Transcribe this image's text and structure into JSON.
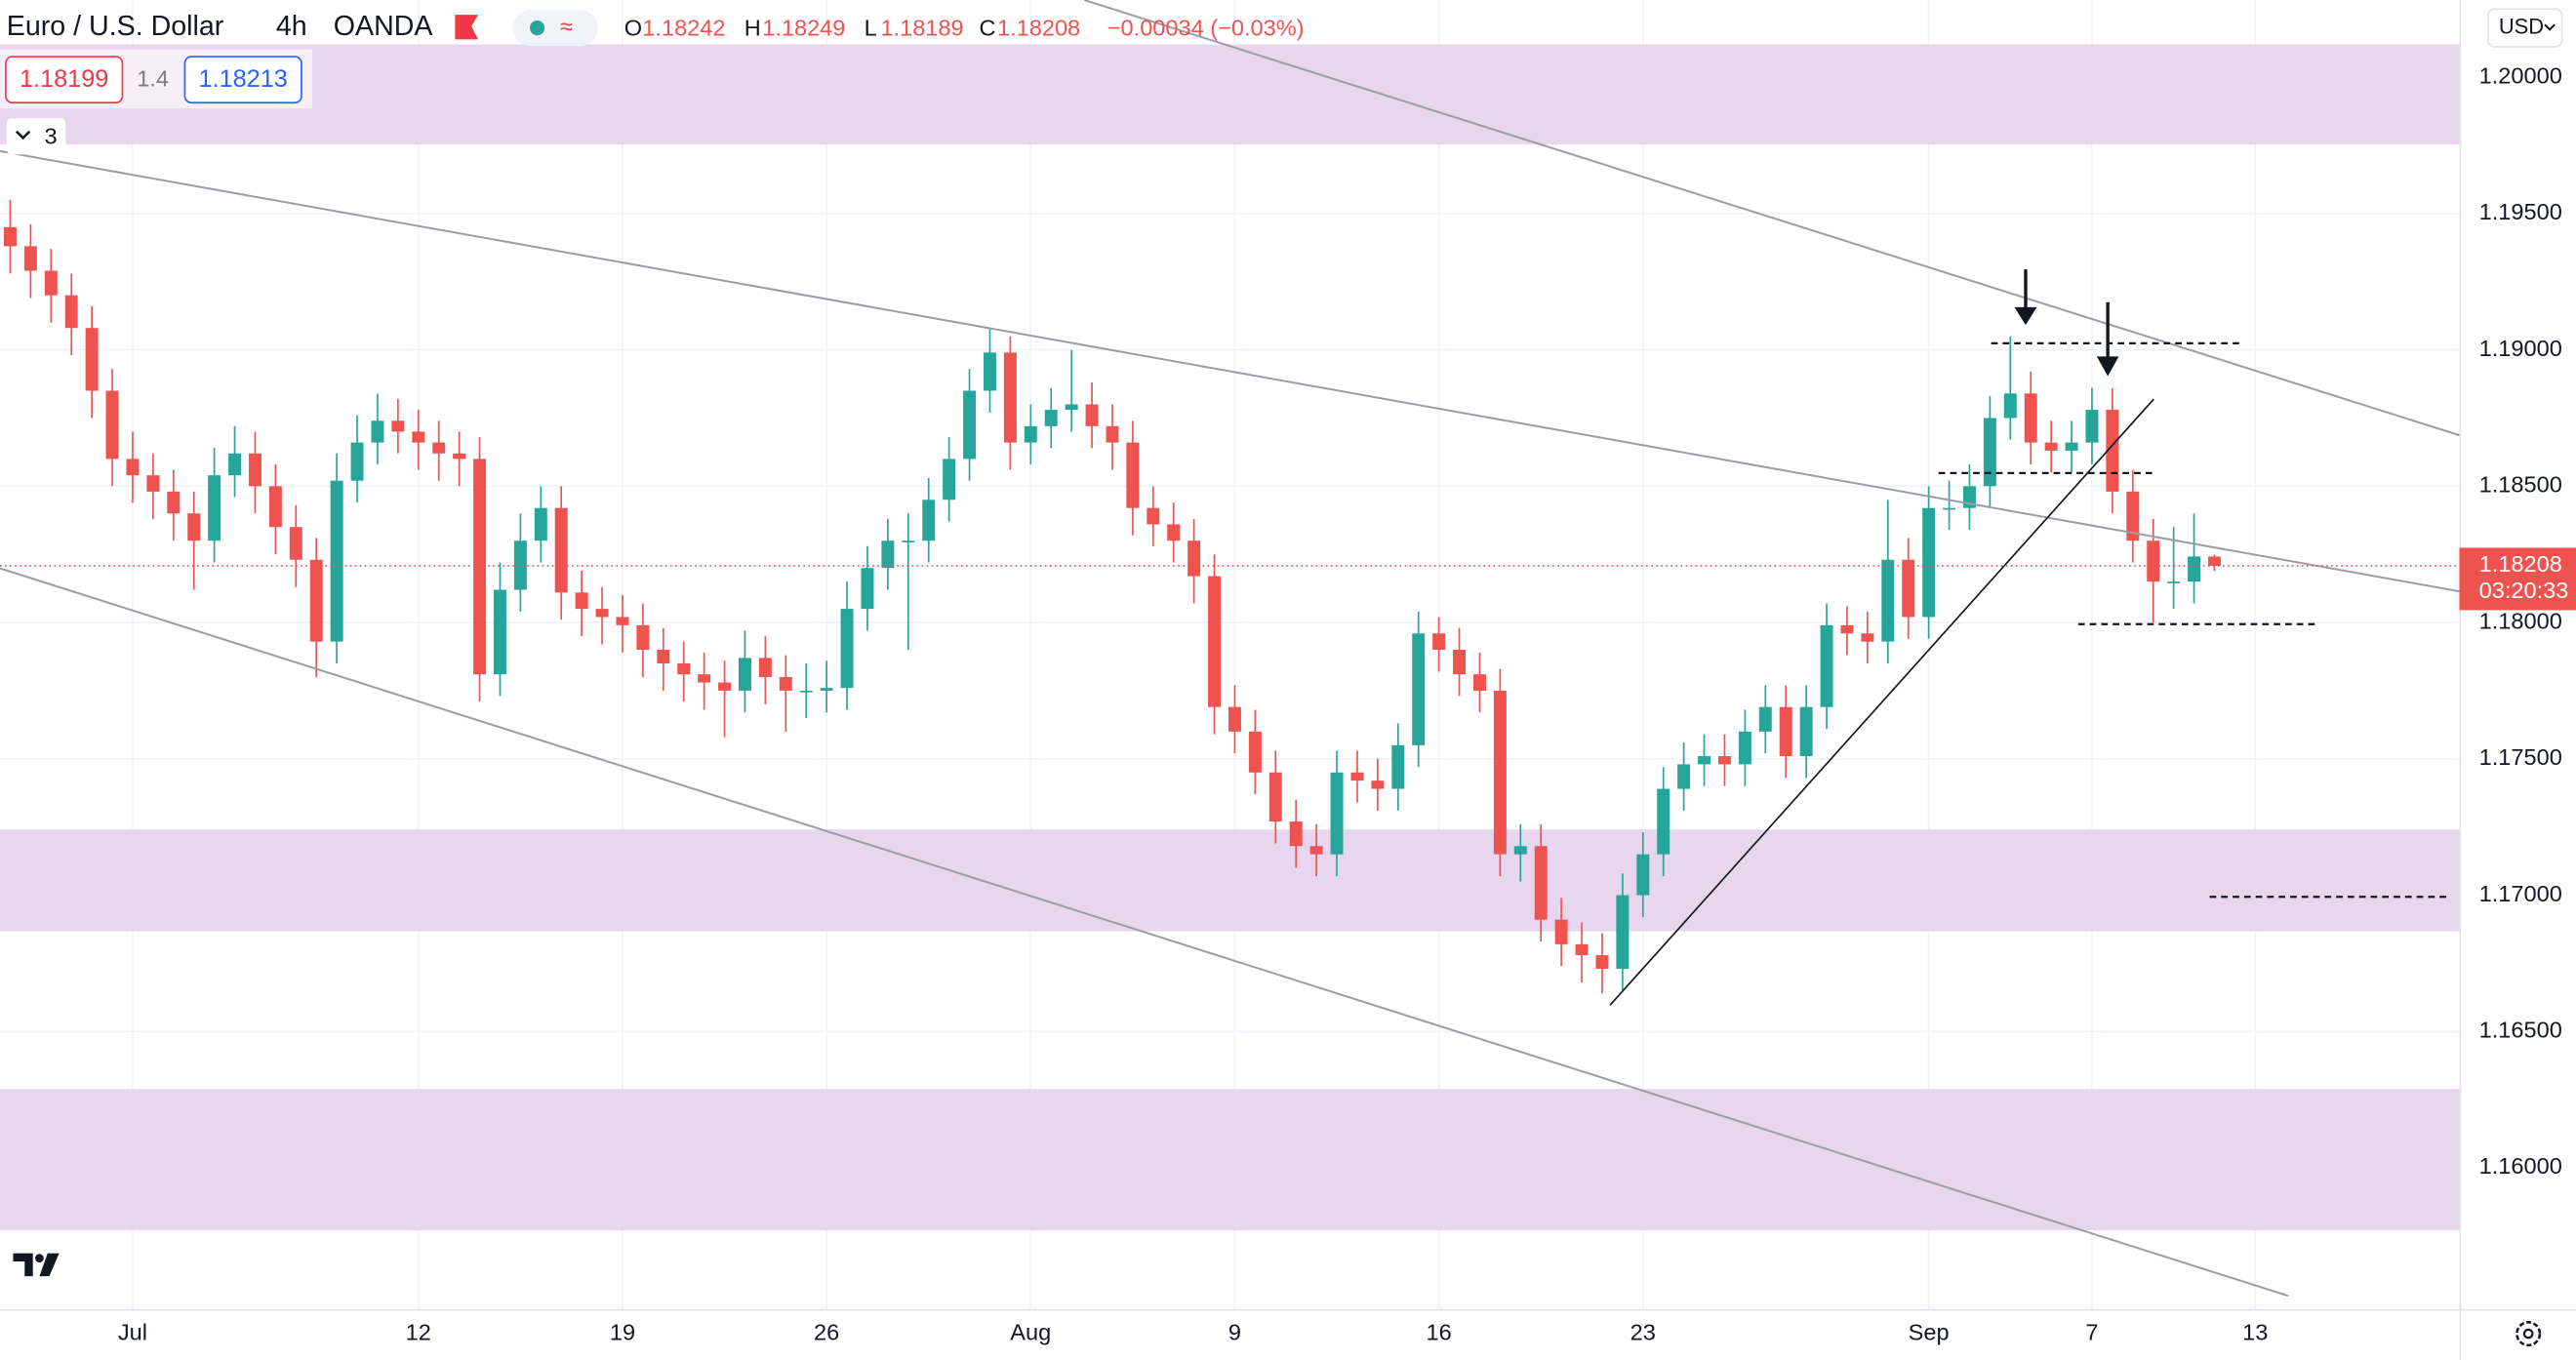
{
  "header": {
    "symbol": "Euro / U.S. Dollar",
    "interval": "4h",
    "exchange": "OANDA",
    "ohlc_labels": [
      "O",
      "H",
      "L",
      "C"
    ],
    "ohlc_values": [
      "1.18242",
      "1.18249",
      "1.18189",
      "1.18208"
    ],
    "change": "−0.00034 (−0.03%)",
    "sell_price": "1.18199",
    "spread": "1.4",
    "buy_price": "1.18213",
    "indicators_count": "3",
    "currency": "USD"
  },
  "chart_data": {
    "type": "candlestick",
    "up_color": "#26a69a",
    "down_color": "#ef5350",
    "last_price": "1.18208",
    "countdown": "03:20:33",
    "grid": true,
    "xlim": [
      -0.5,
      120
    ],
    "xticks": [
      {
        "value": 6,
        "label": "Jul"
      },
      {
        "value": 20,
        "label": "12"
      },
      {
        "value": 30,
        "label": "19"
      },
      {
        "value": 40,
        "label": "26"
      },
      {
        "value": 50,
        "label": "Aug"
      },
      {
        "value": 60,
        "label": "9"
      },
      {
        "value": 70,
        "label": "16"
      },
      {
        "value": 80,
        "label": "23"
      },
      {
        "value": 94,
        "label": "Sep"
      },
      {
        "value": 102,
        "label": "7"
      },
      {
        "value": 110,
        "label": "13"
      }
    ],
    "ylim": [
      1.15482,
      1.20283
    ],
    "yticks": [
      {
        "value": 1.16,
        "label": "1.16000"
      },
      {
        "value": 1.165,
        "label": "1.16500"
      },
      {
        "value": 1.17,
        "label": "1.17000"
      },
      {
        "value": 1.175,
        "label": "1.17500"
      },
      {
        "value": 1.18,
        "label": "1.18000"
      },
      {
        "value": 1.185,
        "label": "1.18500"
      },
      {
        "value": 1.19,
        "label": "1.19000"
      },
      {
        "value": 1.195,
        "label": "1.19500"
      },
      {
        "value": 1.2,
        "label": "1.20000"
      }
    ],
    "ohlc": [
      [
        1.1945,
        1.1955,
        1.1928,
        1.1938
      ],
      [
        1.1938,
        1.1946,
        1.1919,
        1.1929
      ],
      [
        1.1929,
        1.1937,
        1.191,
        1.192
      ],
      [
        1.192,
        1.1928,
        1.1898,
        1.1908
      ],
      [
        1.1908,
        1.1916,
        1.1875,
        1.1885
      ],
      [
        1.1885,
        1.1893,
        1.185,
        1.186
      ],
      [
        1.186,
        1.187,
        1.1844,
        1.1854
      ],
      [
        1.1854,
        1.1862,
        1.1838,
        1.1848
      ],
      [
        1.1848,
        1.1856,
        1.183,
        1.184
      ],
      [
        1.184,
        1.1848,
        1.1812,
        1.183
      ],
      [
        1.183,
        1.1864,
        1.1822,
        1.1854
      ],
      [
        1.1854,
        1.1872,
        1.1846,
        1.1862
      ],
      [
        1.1862,
        1.187,
        1.184,
        1.185
      ],
      [
        1.185,
        1.1858,
        1.1825,
        1.1835
      ],
      [
        1.1835,
        1.1843,
        1.1813,
        1.1823
      ],
      [
        1.1823,
        1.1831,
        1.178,
        1.1793
      ],
      [
        1.1793,
        1.1862,
        1.1785,
        1.1852
      ],
      [
        1.1852,
        1.1876,
        1.1844,
        1.1866
      ],
      [
        1.1866,
        1.1884,
        1.1858,
        1.1874
      ],
      [
        1.1874,
        1.1882,
        1.1862,
        1.187
      ],
      [
        1.187,
        1.1878,
        1.1856,
        1.1866
      ],
      [
        1.1866,
        1.1874,
        1.1852,
        1.1862
      ],
      [
        1.1862,
        1.187,
        1.185,
        1.186
      ],
      [
        1.186,
        1.1868,
        1.1771,
        1.1781
      ],
      [
        1.1781,
        1.1822,
        1.1773,
        1.1812
      ],
      [
        1.1812,
        1.184,
        1.1804,
        1.183
      ],
      [
        1.183,
        1.185,
        1.1822,
        1.1842
      ],
      [
        1.1842,
        1.185,
        1.1801,
        1.1811
      ],
      [
        1.1811,
        1.1819,
        1.1795,
        1.1805
      ],
      [
        1.1805,
        1.1813,
        1.1792,
        1.1802
      ],
      [
        1.1802,
        1.181,
        1.1789,
        1.1799
      ],
      [
        1.1799,
        1.1807,
        1.178,
        1.179
      ],
      [
        1.179,
        1.1798,
        1.1775,
        1.1785
      ],
      [
        1.1785,
        1.1793,
        1.1771,
        1.1781
      ],
      [
        1.1781,
        1.1789,
        1.1768,
        1.1778
      ],
      [
        1.1778,
        1.1786,
        1.1758,
        1.1775
      ],
      [
        1.1775,
        1.1797,
        1.1767,
        1.1787
      ],
      [
        1.1787,
        1.1795,
        1.177,
        1.178
      ],
      [
        1.178,
        1.1788,
        1.176,
        1.1775
      ],
      [
        1.1775,
        1.1785,
        1.1765,
        1.1775
      ],
      [
        1.1775,
        1.1786,
        1.1767,
        1.1776
      ],
      [
        1.1776,
        1.1815,
        1.1768,
        1.1805
      ],
      [
        1.1805,
        1.1828,
        1.1797,
        1.182
      ],
      [
        1.182,
        1.1838,
        1.1812,
        1.183
      ],
      [
        1.183,
        1.184,
        1.179,
        1.183
      ],
      [
        1.183,
        1.1853,
        1.1822,
        1.1845
      ],
      [
        1.1845,
        1.1868,
        1.1837,
        1.186
      ],
      [
        1.186,
        1.1893,
        1.1852,
        1.1885
      ],
      [
        1.1885,
        1.1908,
        1.1877,
        1.1899
      ],
      [
        1.1899,
        1.1905,
        1.1856,
        1.1866
      ],
      [
        1.1866,
        1.188,
        1.1858,
        1.1872
      ],
      [
        1.1872,
        1.1886,
        1.1864,
        1.1878
      ],
      [
        1.1878,
        1.19,
        1.187,
        1.188
      ],
      [
        1.188,
        1.1888,
        1.1864,
        1.1872
      ],
      [
        1.1872,
        1.188,
        1.1856,
        1.1866
      ],
      [
        1.1866,
        1.1874,
        1.1832,
        1.1842
      ],
      [
        1.1842,
        1.185,
        1.1828,
        1.1836
      ],
      [
        1.1836,
        1.1844,
        1.1822,
        1.183
      ],
      [
        1.183,
        1.1838,
        1.1807,
        1.1817
      ],
      [
        1.1817,
        1.1825,
        1.1759,
        1.1769
      ],
      [
        1.1769,
        1.1777,
        1.1752,
        1.176
      ],
      [
        1.176,
        1.1768,
        1.1737,
        1.1745
      ],
      [
        1.1745,
        1.1753,
        1.1719,
        1.1727
      ],
      [
        1.1727,
        1.1735,
        1.171,
        1.1718
      ],
      [
        1.1718,
        1.1726,
        1.1707,
        1.1715
      ],
      [
        1.1715,
        1.1753,
        1.1707,
        1.1745
      ],
      [
        1.1745,
        1.1753,
        1.1734,
        1.1742
      ],
      [
        1.1742,
        1.175,
        1.1731,
        1.1739
      ],
      [
        1.1739,
        1.1763,
        1.1731,
        1.1755
      ],
      [
        1.1755,
        1.1804,
        1.1747,
        1.1796
      ],
      [
        1.1796,
        1.1802,
        1.1782,
        1.179
      ],
      [
        1.179,
        1.1798,
        1.1773,
        1.1781
      ],
      [
        1.1781,
        1.1789,
        1.1767,
        1.1775
      ],
      [
        1.1775,
        1.1783,
        1.1707,
        1.1715
      ],
      [
        1.1715,
        1.1726,
        1.1705,
        1.1718
      ],
      [
        1.1718,
        1.1726,
        1.1683,
        1.1691
      ],
      [
        1.1691,
        1.1699,
        1.1674,
        1.1682
      ],
      [
        1.1682,
        1.169,
        1.1668,
        1.1678
      ],
      [
        1.1678,
        1.1686,
        1.1664,
        1.1673
      ],
      [
        1.1673,
        1.1708,
        1.1665,
        1.17
      ],
      [
        1.17,
        1.1723,
        1.1692,
        1.1715
      ],
      [
        1.1715,
        1.1747,
        1.1707,
        1.1739
      ],
      [
        1.1739,
        1.1756,
        1.1731,
        1.1748
      ],
      [
        1.1748,
        1.1759,
        1.174,
        1.1751
      ],
      [
        1.1751,
        1.1759,
        1.174,
        1.1748
      ],
      [
        1.1748,
        1.1768,
        1.174,
        1.176
      ],
      [
        1.176,
        1.1777,
        1.1752,
        1.1769
      ],
      [
        1.1769,
        1.1777,
        1.1743,
        1.1751
      ],
      [
        1.1751,
        1.1777,
        1.1743,
        1.1769
      ],
      [
        1.1769,
        1.1807,
        1.1761,
        1.1799
      ],
      [
        1.1799,
        1.1806,
        1.1788,
        1.1796
      ],
      [
        1.1796,
        1.1804,
        1.1785,
        1.1793
      ],
      [
        1.1793,
        1.1845,
        1.1785,
        1.1823
      ],
      [
        1.1823,
        1.1831,
        1.1794,
        1.1802
      ],
      [
        1.1802,
        1.185,
        1.1794,
        1.1842
      ],
      [
        1.1842,
        1.1852,
        1.1834,
        1.1842
      ],
      [
        1.1842,
        1.1858,
        1.1834,
        1.185
      ],
      [
        1.185,
        1.1883,
        1.1842,
        1.1875
      ],
      [
        1.1875,
        1.1905,
        1.1867,
        1.1884
      ],
      [
        1.1884,
        1.1892,
        1.1858,
        1.1866
      ],
      [
        1.1866,
        1.1874,
        1.1855,
        1.1863
      ],
      [
        1.1863,
        1.1874,
        1.1855,
        1.1866
      ],
      [
        1.1866,
        1.1886,
        1.1858,
        1.1878
      ],
      [
        1.1878,
        1.1886,
        1.184,
        1.1848
      ],
      [
        1.1848,
        1.1856,
        1.1822,
        1.183
      ],
      [
        1.183,
        1.1838,
        1.18,
        1.1815
      ],
      [
        1.1815,
        1.1835,
        1.1805,
        1.1815
      ],
      [
        1.1815,
        1.184,
        1.1807,
        1.18242
      ],
      [
        1.18242,
        1.18249,
        1.18189,
        1.18208
      ]
    ]
  }
}
